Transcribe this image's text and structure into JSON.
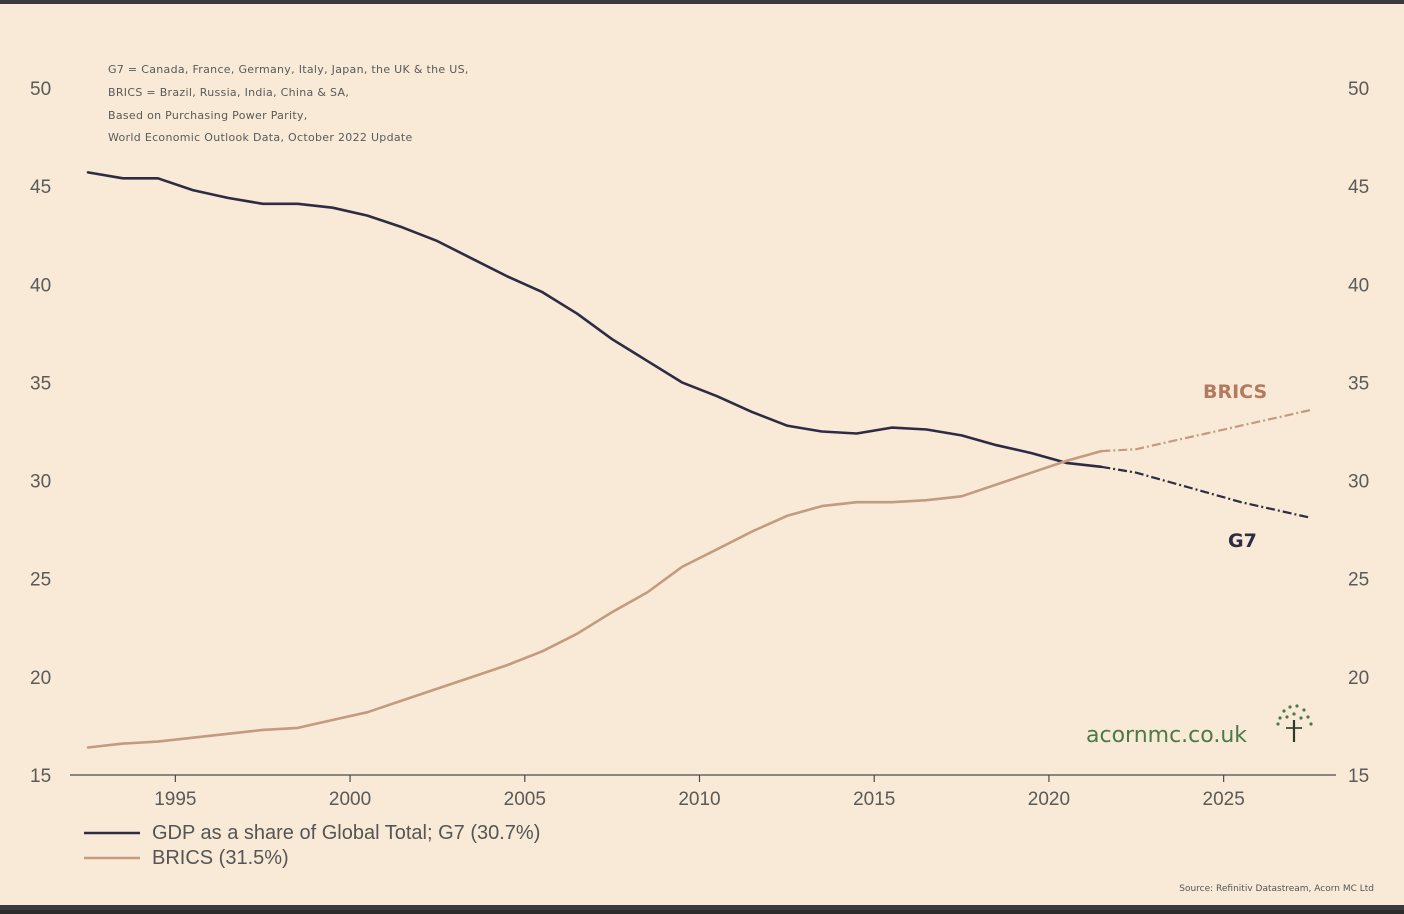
{
  "chart_data": {
    "type": "line",
    "title": "",
    "notes": [
      "G7 = Canada, France, Germany, Italy, Japan, the UK & the US,",
      "BRICS = Brazil, Russia, India, China & SA,",
      "Based on Purchasing Power Parity,",
      "World Economic Outlook Data, October 2022 Update"
    ],
    "xlabel": "",
    "ylabel": "",
    "xlim": [
      1992.5,
      2027.5
    ],
    "ylim": [
      15,
      50
    ],
    "x_ticks": [
      1995,
      2000,
      2005,
      2010,
      2015,
      2020,
      2025
    ],
    "x_tick_labels": [
      "1995",
      "2000",
      "2005",
      "2010",
      "2015",
      "2020",
      "2025"
    ],
    "y_ticks": [
      15,
      20,
      25,
      30,
      35,
      40,
      45,
      50
    ],
    "y_tick_labels_left": [
      "15",
      "20",
      "25",
      "30",
      "35",
      "40",
      "45",
      "50"
    ],
    "y_tick_labels_right": [
      "15",
      "20",
      "25",
      "30",
      "35",
      "40",
      "45",
      "50"
    ],
    "projection_start": 2022,
    "series": [
      {
        "name": "G7",
        "color": "#2e2c44",
        "label": "G7",
        "legend": "GDP as a share of Global Total; G7 (30.7%)",
        "x": [
          1992.5,
          1993.5,
          1994.5,
          1995.5,
          1996.5,
          1997.5,
          1998.5,
          1999.5,
          2000.5,
          2001.5,
          2002.5,
          2003.5,
          2004.5,
          2005.5,
          2006.5,
          2007.5,
          2008.5,
          2009.5,
          2010.5,
          2011.5,
          2012.5,
          2013.5,
          2014.5,
          2015.5,
          2016.5,
          2017.5,
          2018.5,
          2019.5,
          2020.5,
          2021.5,
          2022.5,
          2023.5,
          2024.5,
          2025.5,
          2026.5,
          2027.5
        ],
        "values": [
          45.7,
          45.4,
          45.4,
          44.8,
          44.4,
          44.1,
          44.1,
          43.9,
          43.5,
          42.9,
          42.2,
          41.3,
          40.4,
          39.6,
          38.5,
          37.2,
          36.1,
          35.0,
          34.3,
          33.5,
          32.8,
          32.5,
          32.4,
          32.7,
          32.6,
          32.3,
          31.8,
          31.4,
          30.9,
          30.7,
          30.4,
          29.9,
          29.4,
          28.9,
          28.5,
          28.1
        ]
      },
      {
        "name": "BRICS",
        "color": "#c49a80",
        "label": "BRICS",
        "legend": "BRICS (31.5%)",
        "x": [
          1992.5,
          1993.5,
          1994.5,
          1995.5,
          1996.5,
          1997.5,
          1998.5,
          1999.5,
          2000.5,
          2001.5,
          2002.5,
          2003.5,
          2004.5,
          2005.5,
          2006.5,
          2007.5,
          2008.5,
          2009.5,
          2010.5,
          2011.5,
          2012.5,
          2013.5,
          2014.5,
          2015.5,
          2016.5,
          2017.5,
          2018.5,
          2019.5,
          2020.5,
          2021.5,
          2022.5,
          2023.5,
          2024.5,
          2025.5,
          2026.5,
          2027.5
        ],
        "values": [
          16.4,
          16.6,
          16.7,
          16.9,
          17.1,
          17.3,
          17.4,
          17.8,
          18.2,
          18.8,
          19.4,
          20.0,
          20.6,
          21.3,
          22.2,
          23.3,
          24.3,
          25.6,
          26.5,
          27.4,
          28.2,
          28.7,
          28.9,
          28.9,
          29.0,
          29.2,
          29.8,
          30.4,
          31.0,
          31.5,
          31.6,
          32.0,
          32.4,
          32.8,
          33.2,
          33.6
        ]
      }
    ]
  },
  "branding": {
    "logo_text": "acornmc.co.uk",
    "logo_color": "#4b7a48",
    "source": "Source: Refinitiv Datastream, Acorn MC Ltd"
  }
}
